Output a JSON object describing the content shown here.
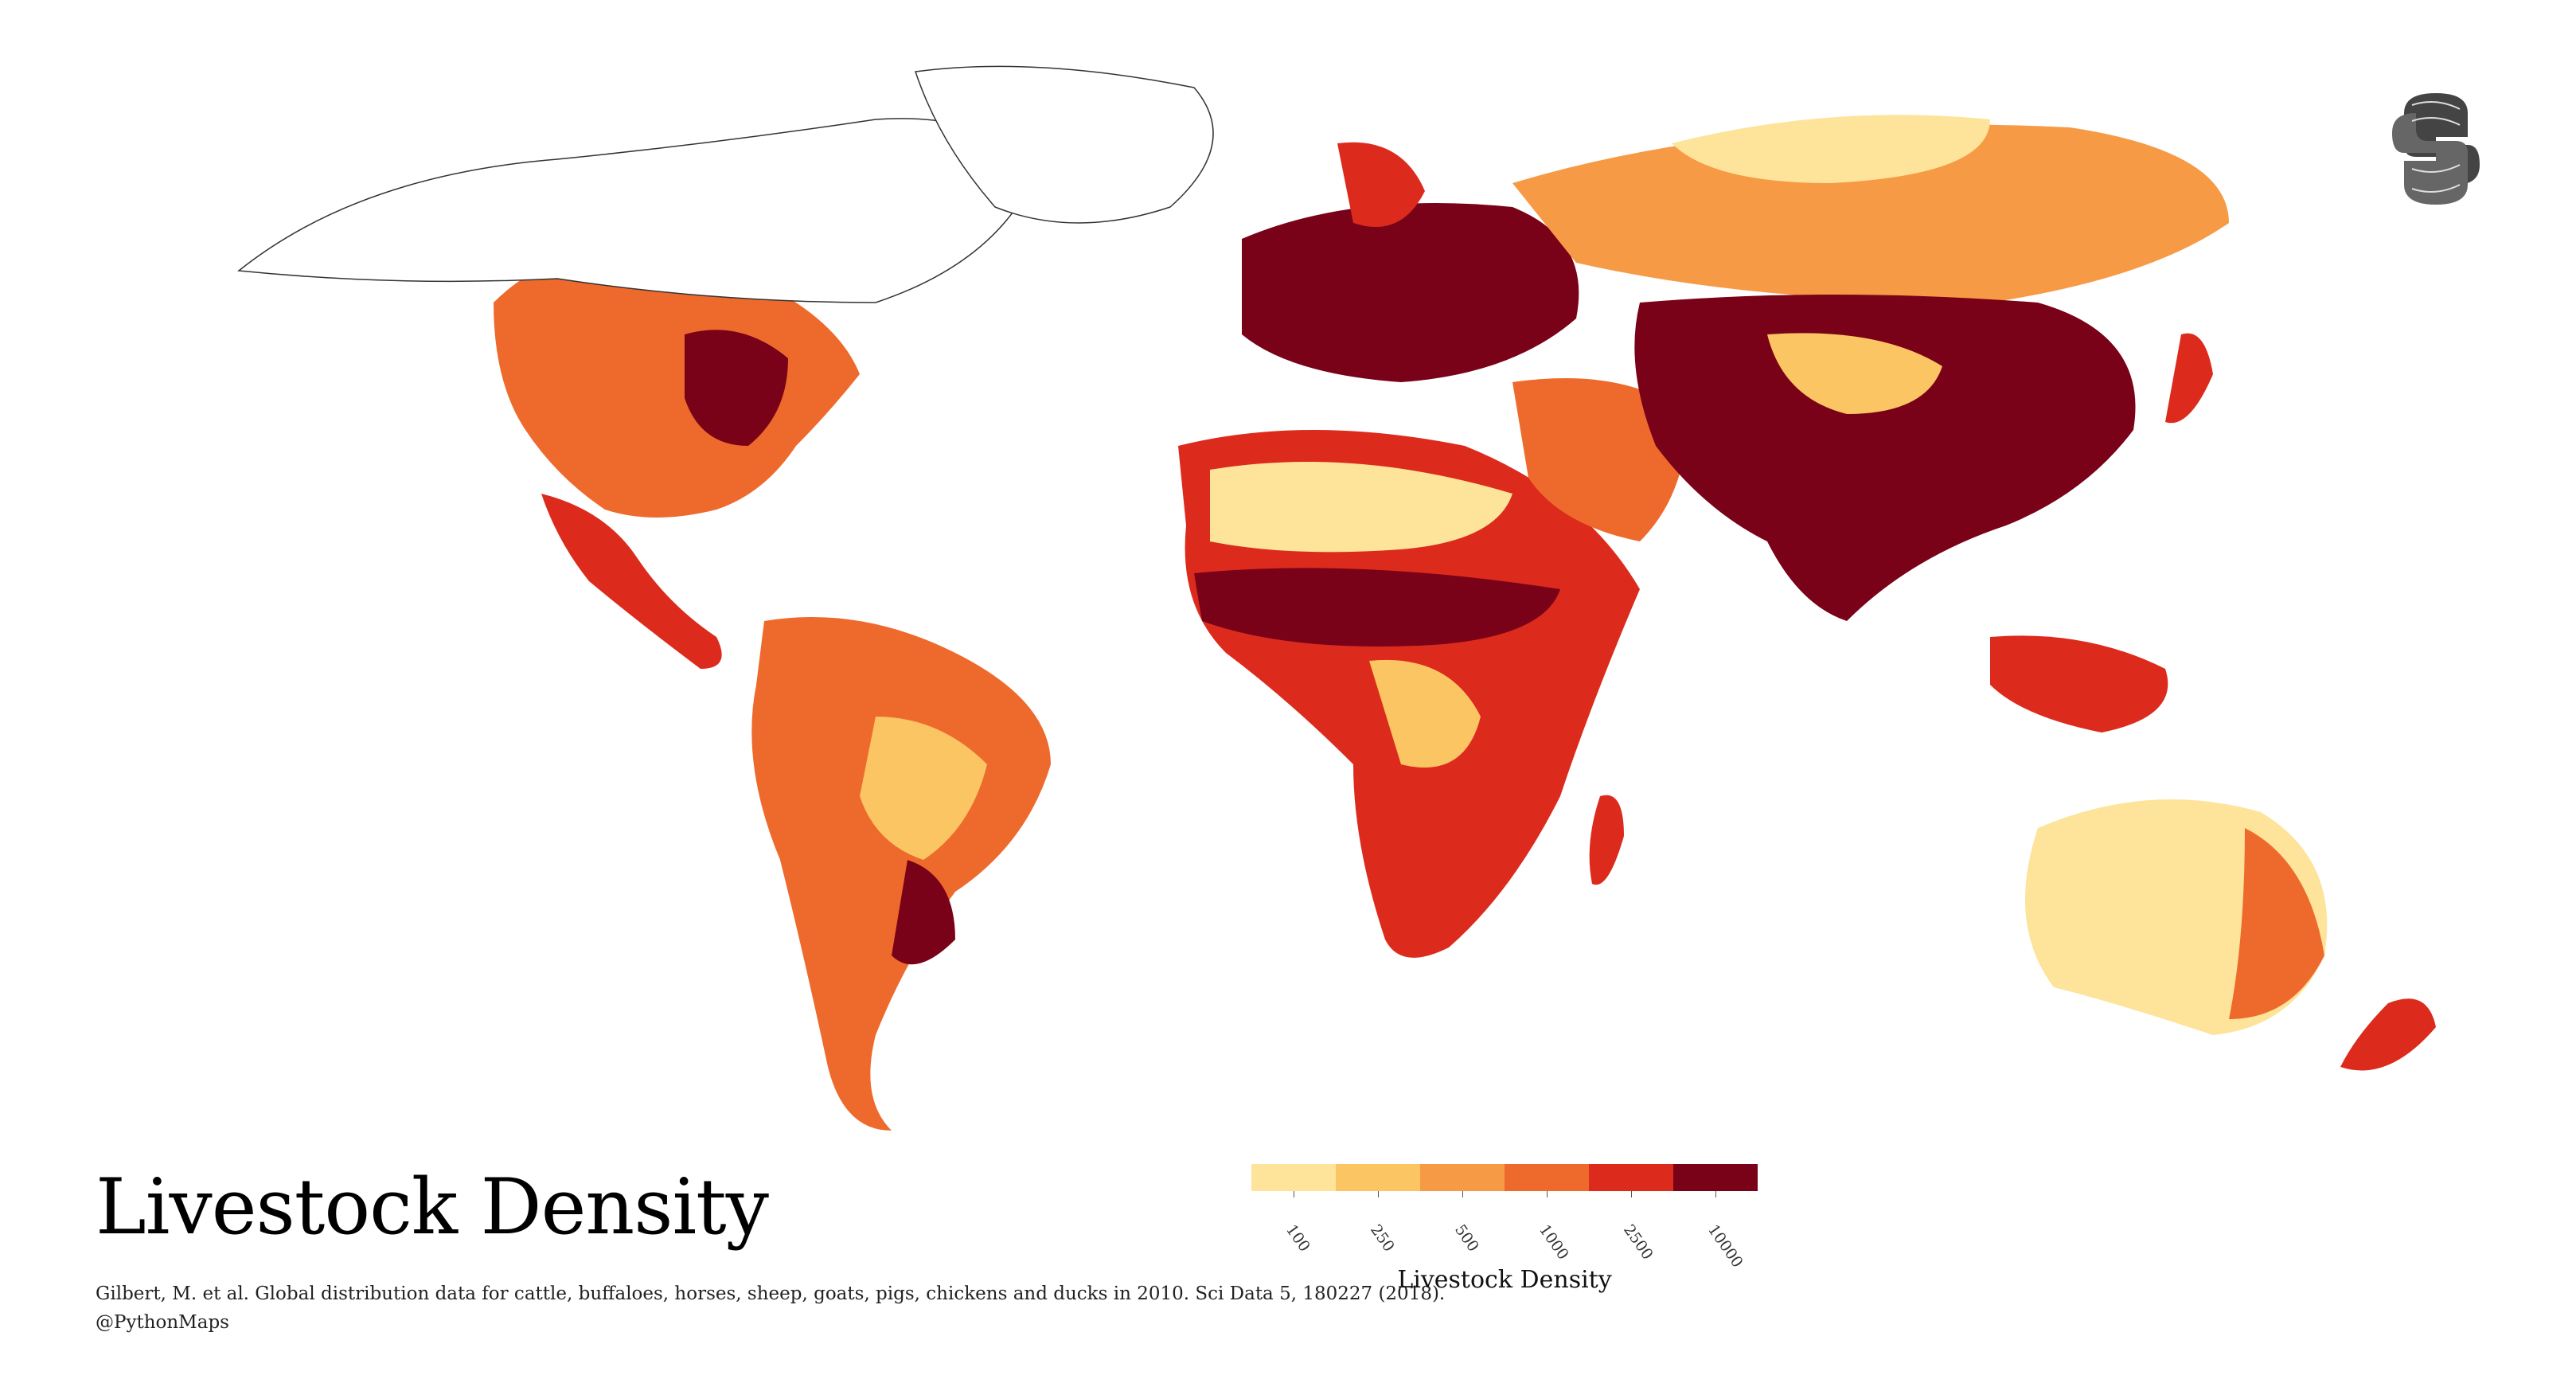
{
  "title": "Livestock Density",
  "citation": "Gilbert, M. et al. Global distribution data for cattle, buffaloes, horses, sheep, goats, pigs, chickens and ducks in 2010. Sci Data 5, 180227 (2018).",
  "handle": "@PythonMaps",
  "legend": {
    "label": "Livestock Density",
    "ticks": [
      "100",
      "250",
      "500",
      "1000",
      "2500",
      "10000"
    ],
    "colors": [
      "#fde49a",
      "#fbc564",
      "#f79a45",
      "#ee6a2c",
      "#dc2b1c",
      "#7a0218"
    ]
  },
  "logo_icon": "python-logo-icon",
  "map": {
    "background": "#ffffff",
    "border_color": "#333333"
  }
}
